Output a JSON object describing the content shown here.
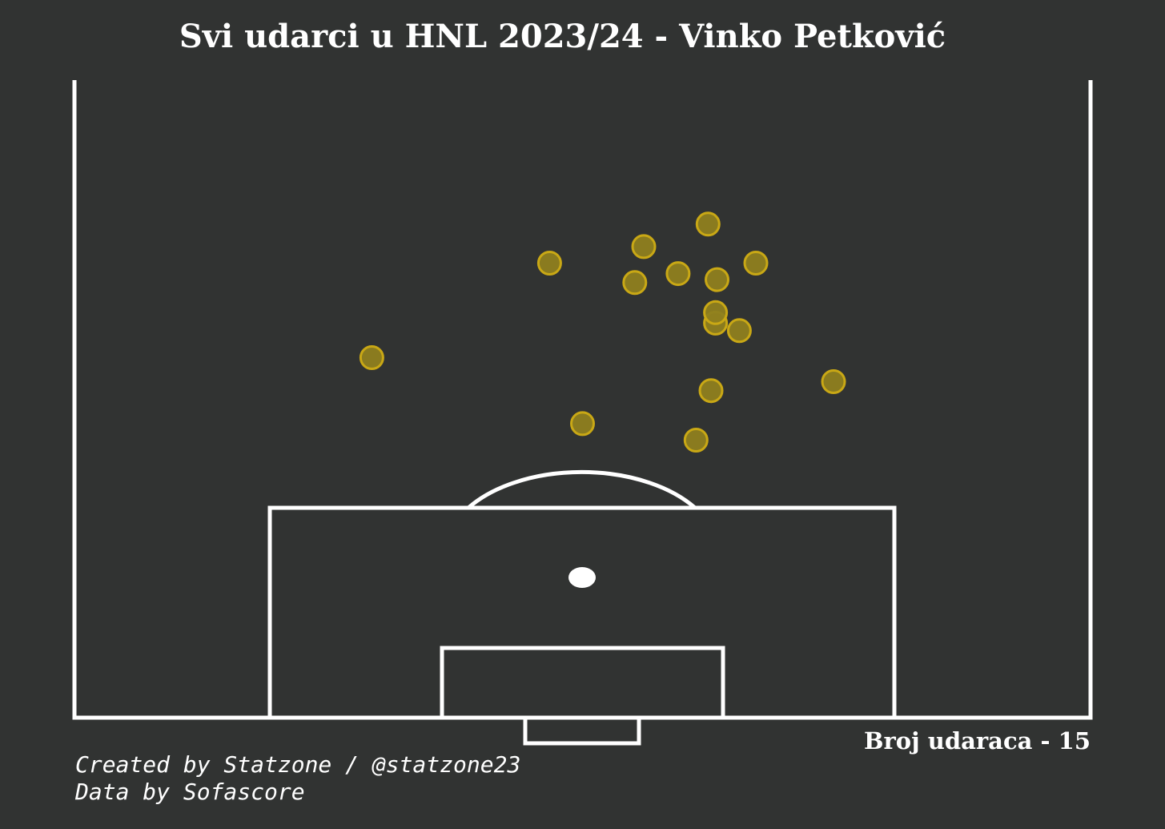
{
  "title": "Svi udarci u HNL 2023/24 - Vinko Petković",
  "shot_count_label": "Broj udaraca - 15",
  "credits": {
    "created_by": "Created by Statzone / @statzone23",
    "data_source": "Data by Sofascore"
  },
  "colors": {
    "background": "#313332",
    "pitch_lines": "#ffffff",
    "shot_fill": "#8f7f1f",
    "shot_edge": "#c9a815"
  },
  "chart_data": {
    "type": "scatter",
    "title": "Svi udarci u HNL 2023/24 - Vinko Petković",
    "xlabel": "",
    "ylabel": "",
    "xlim": [
      0,
      68
    ],
    "ylim": [
      105,
      62.5
    ],
    "points": [
      {
        "x": 41.6,
        "y": 86.5
      },
      {
        "x": 34.0,
        "y": 85.4
      },
      {
        "x": 19.9,
        "y": 81.0
      },
      {
        "x": 42.6,
        "y": 83.2
      },
      {
        "x": 50.8,
        "y": 82.6
      },
      {
        "x": 42.9,
        "y": 78.7
      },
      {
        "x": 42.9,
        "y": 78.0
      },
      {
        "x": 44.5,
        "y": 79.2
      },
      {
        "x": 37.5,
        "y": 76.0
      },
      {
        "x": 40.4,
        "y": 75.4
      },
      {
        "x": 43.0,
        "y": 75.8
      },
      {
        "x": 31.8,
        "y": 74.7
      },
      {
        "x": 45.6,
        "y": 74.7
      },
      {
        "x": 38.1,
        "y": 73.6
      },
      {
        "x": 42.4,
        "y": 72.1
      }
    ]
  }
}
